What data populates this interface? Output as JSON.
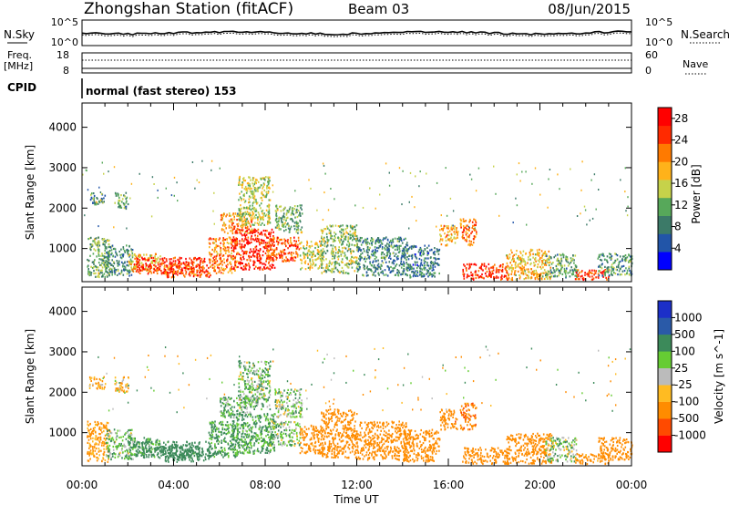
{
  "header": {
    "station": "Zhongshan Station (fitACF)",
    "beam": "Beam 03",
    "date": "08/Jun/2015"
  },
  "noise_panel": {
    "left_label": "N.Sky",
    "right_label": "N.Search",
    "left_ticks": [
      "10^5",
      "10^0"
    ],
    "right_ticks": [
      "10^5",
      "10^0"
    ]
  },
  "freq_panel": {
    "left_label_1": "Freq.",
    "left_label_2": "[MHz]",
    "left_ticks": [
      "18",
      "8"
    ],
    "right_label": "Nave",
    "right_ticks": [
      "60",
      "0"
    ]
  },
  "cpid_panel": {
    "label": "CPID",
    "text": "normal (fast stereo) 153"
  },
  "colors": {
    "power_scale": [
      "#0000ff",
      "#2255a8",
      "#3c7a68",
      "#57a85a",
      "#c6d24a",
      "#ffb21a",
      "#ff7a00",
      "#ff2a00",
      "#ff0000"
    ],
    "velocity_scale": [
      "#ff0000",
      "#ff4a00",
      "#ff8c00",
      "#ffbb22",
      "#bbbbbb",
      "#66cc33",
      "#3c8a5a",
      "#2a5aa8",
      "#1c2fc8"
    ]
  },
  "chart_data": [
    {
      "type": "heatmap",
      "name": "power",
      "title": "",
      "ylabel": "Slant Range [km]",
      "xlabel": "",
      "x_ticks": [
        "00:00",
        "04:00",
        "08:00",
        "12:00",
        "16:00",
        "20:00",
        "00:00"
      ],
      "y_ticks": [
        1000,
        2000,
        3000,
        4000
      ],
      "ylim": [
        180,
        4600
      ],
      "xlim_hours": [
        0,
        24
      ],
      "colorbar_label": "Power [dB]",
      "colorbar_ticks": [
        4,
        8,
        12,
        16,
        20,
        24,
        28
      ],
      "colorbar_range": [
        0,
        30
      ],
      "clusters": [
        {
          "t0": 0.2,
          "t1": 1.2,
          "r0": 300,
          "r1": 1300,
          "value": 12
        },
        {
          "t0": 0.3,
          "t1": 1.0,
          "r0": 2100,
          "r1": 2400,
          "value": 10
        },
        {
          "t0": 1.0,
          "t1": 2.2,
          "r0": 350,
          "r1": 1100,
          "value": 9
        },
        {
          "t0": 1.4,
          "t1": 2.0,
          "r0": 2000,
          "r1": 2400,
          "value": 11
        },
        {
          "t0": 2.0,
          "t1": 3.4,
          "r0": 450,
          "r1": 900,
          "value": 18
        },
        {
          "t0": 2.2,
          "t1": 5.4,
          "r0": 400,
          "r1": 800,
          "value": 26
        },
        {
          "t0": 3.5,
          "t1": 5.6,
          "r0": 300,
          "r1": 700,
          "value": 24
        },
        {
          "t0": 5.5,
          "t1": 6.8,
          "r0": 400,
          "r1": 1300,
          "value": 21
        },
        {
          "t0": 6.0,
          "t1": 7.4,
          "r0": 1400,
          "r1": 1900,
          "value": 20
        },
        {
          "t0": 6.5,
          "t1": 8.4,
          "r0": 500,
          "r1": 1500,
          "value": 27
        },
        {
          "t0": 6.8,
          "t1": 8.2,
          "r0": 1600,
          "r1": 2800,
          "value": 15
        },
        {
          "t0": 8.0,
          "t1": 9.5,
          "r0": 700,
          "r1": 1300,
          "value": 24
        },
        {
          "t0": 8.4,
          "t1": 9.6,
          "r0": 1400,
          "r1": 2100,
          "value": 12
        },
        {
          "t0": 9.5,
          "t1": 10.5,
          "r0": 500,
          "r1": 1200,
          "value": 16
        },
        {
          "t0": 10.4,
          "t1": 12.0,
          "r0": 400,
          "r1": 1600,
          "value": 13
        },
        {
          "t0": 12.0,
          "t1": 14.2,
          "r0": 350,
          "r1": 1300,
          "value": 9
        },
        {
          "t0": 14.0,
          "t1": 15.6,
          "r0": 300,
          "r1": 1100,
          "value": 8
        },
        {
          "t0": 15.6,
          "t1": 16.4,
          "r0": 1100,
          "r1": 1600,
          "value": 19
        },
        {
          "t0": 16.5,
          "t1": 17.2,
          "r0": 1100,
          "r1": 1750,
          "value": 22
        },
        {
          "t0": 16.6,
          "t1": 18.6,
          "r0": 250,
          "r1": 650,
          "value": 26
        },
        {
          "t0": 18.5,
          "t1": 20.5,
          "r0": 250,
          "r1": 1000,
          "value": 18
        },
        {
          "t0": 20.2,
          "t1": 21.6,
          "r0": 300,
          "r1": 900,
          "value": 11
        },
        {
          "t0": 21.5,
          "t1": 23.0,
          "r0": 250,
          "r1": 500,
          "value": 25
        },
        {
          "t0": 22.5,
          "t1": 24.0,
          "r0": 350,
          "r1": 900,
          "value": 10
        }
      ]
    },
    {
      "type": "heatmap",
      "name": "velocity",
      "title": "",
      "ylabel": "Slant Range [km]",
      "xlabel": "Time UT",
      "x_ticks": [
        "00:00",
        "04:00",
        "08:00",
        "12:00",
        "16:00",
        "20:00",
        "00:00"
      ],
      "y_ticks": [
        1000,
        2000,
        3000,
        4000
      ],
      "ylim": [
        180,
        4600
      ],
      "xlim_hours": [
        0,
        24
      ],
      "colorbar_label": "Velocity [m s^-1]",
      "colorbar_ticks": [
        1000,
        500,
        100,
        25,
        -25,
        -100,
        -500,
        -1000
      ],
      "clusters": [
        {
          "t0": 0.2,
          "t1": 1.2,
          "r0": 300,
          "r1": 1300,
          "value": -150
        },
        {
          "t0": 0.3,
          "t1": 1.0,
          "r0": 2100,
          "r1": 2400,
          "value": -120
        },
        {
          "t0": 1.0,
          "t1": 2.2,
          "r0": 350,
          "r1": 1100,
          "value": 80
        },
        {
          "t0": 1.4,
          "t1": 2.0,
          "r0": 2000,
          "r1": 2400,
          "value": -60
        },
        {
          "t0": 2.0,
          "t1": 3.4,
          "r0": 450,
          "r1": 900,
          "value": 120
        },
        {
          "t0": 2.2,
          "t1": 5.4,
          "r0": 400,
          "r1": 800,
          "value": 200
        },
        {
          "t0": 3.5,
          "t1": 5.6,
          "r0": 300,
          "r1": 700,
          "value": 350
        },
        {
          "t0": 5.5,
          "t1": 6.8,
          "r0": 400,
          "r1": 1300,
          "value": 150
        },
        {
          "t0": 6.0,
          "t1": 7.4,
          "r0": 1400,
          "r1": 1900,
          "value": 90
        },
        {
          "t0": 6.5,
          "t1": 8.4,
          "r0": 500,
          "r1": 1500,
          "value": 130
        },
        {
          "t0": 6.8,
          "t1": 8.2,
          "r0": 1600,
          "r1": 2800,
          "value": 70
        },
        {
          "t0": 8.0,
          "t1": 9.5,
          "r0": 700,
          "r1": 1300,
          "value": 60
        },
        {
          "t0": 8.4,
          "t1": 9.6,
          "r0": 1400,
          "r1": 2100,
          "value": 40
        },
        {
          "t0": 9.5,
          "t1": 10.5,
          "r0": 500,
          "r1": 1200,
          "value": -200
        },
        {
          "t0": 10.4,
          "t1": 12.0,
          "r0": 400,
          "r1": 1600,
          "value": -300
        },
        {
          "t0": 12.0,
          "t1": 14.2,
          "r0": 350,
          "r1": 1300,
          "value": -250
        },
        {
          "t0": 14.0,
          "t1": 15.6,
          "r0": 300,
          "r1": 1100,
          "value": -350
        },
        {
          "t0": 15.6,
          "t1": 16.4,
          "r0": 1100,
          "r1": 1600,
          "value": -400
        },
        {
          "t0": 16.5,
          "t1": 17.2,
          "r0": 1100,
          "r1": 1750,
          "value": -450
        },
        {
          "t0": 16.6,
          "t1": 18.6,
          "r0": 250,
          "r1": 650,
          "value": -300
        },
        {
          "t0": 18.5,
          "t1": 20.5,
          "r0": 250,
          "r1": 1000,
          "value": -280
        },
        {
          "t0": 20.2,
          "t1": 21.6,
          "r0": 300,
          "r1": 900,
          "value": 60
        },
        {
          "t0": 21.5,
          "t1": 23.0,
          "r0": 250,
          "r1": 500,
          "value": -200
        },
        {
          "t0": 22.5,
          "t1": 24.0,
          "r0": 350,
          "r1": 900,
          "value": -350
        }
      ]
    }
  ]
}
